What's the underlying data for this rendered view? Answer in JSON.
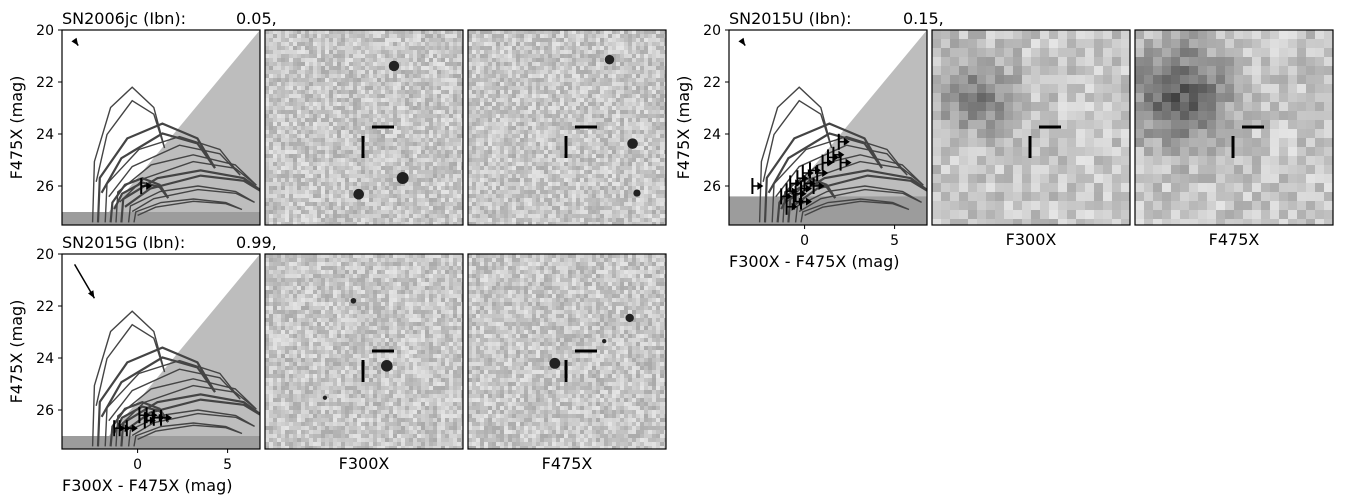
{
  "colors": {
    "frame": "#000000",
    "shade_light": "#bdbdbd",
    "shade_dark": "#9c9c9c",
    "track": "#444444",
    "image_base": "#d4d4d4"
  },
  "icons": {
    "upper_limit_marker": "right-triangle",
    "extinction_vector": "arrow"
  },
  "chart_data": [
    {
      "type": "scatter",
      "name": "SN2006jc",
      "title_name": "SN2006jc (Ibn):",
      "title_value": "0.05,",
      "xlabel": "",
      "ylabel": "F475X (mag)",
      "xlim": [
        -4.2,
        6.8
      ],
      "ylim": [
        27.5,
        20.0
      ],
      "yticks": [
        "20",
        "22",
        "24",
        "26"
      ],
      "xticks": [],
      "floor_mag": 27.0,
      "extinction_vector": {
        "x0": -3.5,
        "y0": 20.4,
        "x1": -3.3,
        "y1": 20.6
      },
      "upper_limits": [
        [
          0.2,
          26.0
        ]
      ],
      "image_labels": [
        "",
        ""
      ]
    },
    {
      "type": "scatter",
      "name": "SN2015U",
      "title_name": "SN2015U (Ibn):",
      "title_value": "0.15,",
      "xlabel": "F300X - F475X (mag)",
      "ylabel": "F475X (mag)",
      "xlim": [
        -4.2,
        6.8
      ],
      "ylim": [
        27.5,
        20.0
      ],
      "yticks": [
        "20",
        "22",
        "24",
        "26"
      ],
      "xticks": [
        "0",
        "5"
      ],
      "floor_mag": 26.4,
      "extinction_vector": {
        "x0": -3.5,
        "y0": 20.4,
        "x1": -3.3,
        "y1": 20.6
      },
      "upper_limits": [
        [
          -2.9,
          26.0
        ],
        [
          -1.3,
          26.4
        ],
        [
          -1.0,
          26.2
        ],
        [
          -0.8,
          25.9
        ],
        [
          -0.5,
          26.3
        ],
        [
          -0.4,
          25.7
        ],
        [
          -0.2,
          26.1
        ],
        [
          -0.1,
          25.5
        ],
        [
          0.0,
          25.9
        ],
        [
          0.3,
          25.4
        ],
        [
          0.5,
          26.0
        ],
        [
          0.7,
          25.5
        ],
        [
          1.0,
          25.1
        ],
        [
          1.3,
          24.9
        ],
        [
          1.6,
          24.8
        ],
        [
          1.9,
          24.3
        ],
        [
          2.0,
          25.1
        ],
        [
          -1.0,
          26.8
        ],
        [
          -0.6,
          26.6
        ],
        [
          -0.2,
          26.6
        ]
      ],
      "image_labels": [
        "F300X",
        "F475X"
      ]
    },
    {
      "type": "scatter",
      "name": "SN2015G",
      "title_name": "SN2015G (Ibn):",
      "title_value": "0.99,",
      "xlabel": "F300X - F475X (mag)",
      "ylabel": "F475X (mag)",
      "xlim": [
        -4.2,
        6.8
      ],
      "ylim": [
        27.5,
        20.0
      ],
      "yticks": [
        "20",
        "22",
        "24",
        "26"
      ],
      "xticks": [
        "0",
        "5"
      ],
      "floor_mag": 27.0,
      "extinction_vector": {
        "x0": -3.5,
        "y0": 20.4,
        "x1": -2.4,
        "y1": 21.7
      },
      "upper_limits": [
        [
          -1.3,
          26.7
        ],
        [
          -1.0,
          26.7
        ],
        [
          -0.6,
          26.7
        ],
        [
          0.1,
          26.2
        ],
        [
          0.5,
          26.2
        ],
        [
          0.9,
          26.3
        ],
        [
          1.3,
          26.3
        ],
        [
          0.4,
          26.4
        ]
      ],
      "image_labels": [
        "F300X",
        "F475X"
      ]
    }
  ]
}
